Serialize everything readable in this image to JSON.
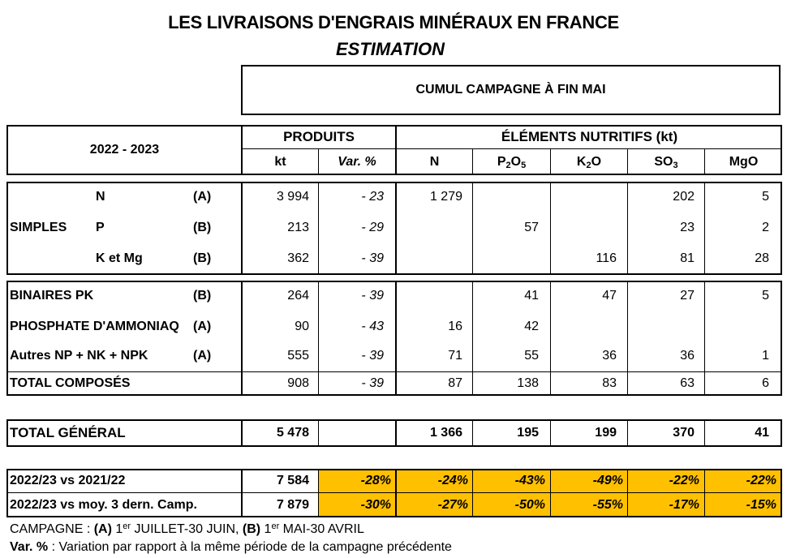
{
  "title": "LES LIVRAISONS D'ENGRAIS MINÉRAUX EN FRANCE",
  "subtitle": "ESTIMATION",
  "period_header": "CUMUL CAMPAGNE À FIN MAI",
  "campaign": "2022 - 2023",
  "headers": {
    "produits": "PRODUITS",
    "elements": "ÉLÉMENTS NUTRITIFS (kt)",
    "kt": "kt",
    "var": "Var. %",
    "n": "N",
    "p_main": "P",
    "p_sub1": "2",
    "p_o": "O",
    "p_sub2": "5",
    "k_main": "K",
    "k_sub": "2",
    "k_o": "O",
    "so_main": "SO",
    "so_sub": "3",
    "mgo": "MgO"
  },
  "simples": {
    "label": "SIMPLES",
    "rows": [
      {
        "name": "N",
        "code": "(A)",
        "kt": "3 994",
        "var": "- 23",
        "n": "1 279",
        "p2o5": "",
        "k2o": "",
        "so3": "202",
        "mgo": "5"
      },
      {
        "name": "P",
        "code": "(B)",
        "kt": "213",
        "var": "- 29",
        "n": "",
        "p2o5": "57",
        "k2o": "",
        "so3": "23",
        "mgo": "2"
      },
      {
        "name": "K et Mg",
        "code": "(B)",
        "kt": "362",
        "var": "- 39",
        "n": "",
        "p2o5": "",
        "k2o": "116",
        "so3": "81",
        "mgo": "28"
      }
    ]
  },
  "composes": [
    {
      "name": "BINAIRES PK",
      "code": "(B)",
      "kt": "264",
      "var": "- 39",
      "n": "",
      "p2o5": "41",
      "k2o": "47",
      "so3": "27",
      "mgo": "5"
    },
    {
      "name": "PHOSPHATE D'AMMONIAQ",
      "code": "(A)",
      "kt": "90",
      "var": "- 43",
      "n": "16",
      "p2o5": "42",
      "k2o": "",
      "so3": "",
      "mgo": ""
    },
    {
      "name": "Autres NP + NK + NPK",
      "code": "(A)",
      "kt": "555",
      "var": "- 39",
      "n": "71",
      "p2o5": "55",
      "k2o": "36",
      "so3": "36",
      "mgo": "1"
    }
  ],
  "total_composes": {
    "name": "TOTAL COMPOSÉS",
    "kt": "908",
    "var": "- 39",
    "n": "87",
    "p2o5": "138",
    "k2o": "83",
    "so3": "63",
    "mgo": "6"
  },
  "total_general": {
    "name": "TOTAL GÉNÉRAL",
    "kt": "5 478",
    "n": "1 366",
    "p2o5": "195",
    "k2o": "199",
    "so3": "370",
    "mgo": "41"
  },
  "comparisons": [
    {
      "name": "2022/23 vs 2021/22",
      "kt": "7 584",
      "var": "-28%",
      "n": "-24%",
      "p2o5": "-43%",
      "k2o": "-49%",
      "so3": "-22%",
      "mgo": "-22%"
    },
    {
      "name": "2022/23 vs moy. 3 dern. Camp.",
      "kt": "7 879",
      "var": "-30%",
      "n": "-27%",
      "p2o5": "-50%",
      "k2o": "-55%",
      "so3": "-17%",
      "mgo": "-15%"
    }
  ],
  "highlight_color": "#ffc000",
  "footnotes": {
    "campagne_label": "CAMPAGNE : ",
    "a_label": "(A)",
    "a_num": " 1",
    "a_sup": "er",
    "a_text": " JUILLET-30 JUIN, ",
    "b_label": "(B)",
    "b_num": " 1",
    "b_sup": "er",
    "b_text": " MAI-30 AVRIL",
    "var_label": "Var. %",
    "var_text": " : Variation par rapport à la même période de la campagne précédente"
  }
}
